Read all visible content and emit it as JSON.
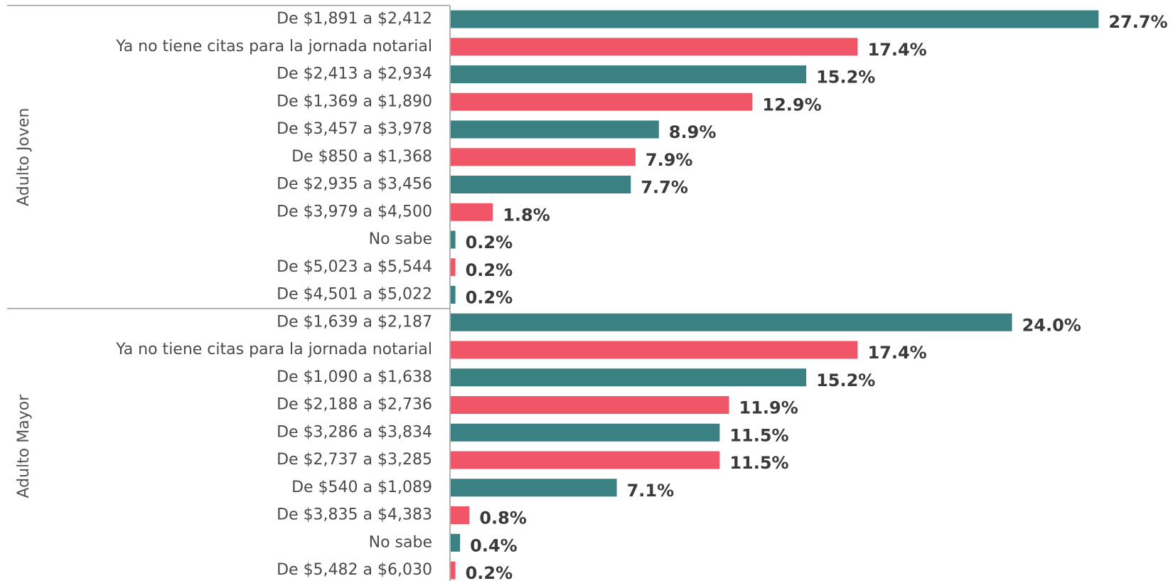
{
  "chart_data": {
    "type": "bar",
    "orientation": "horizontal",
    "groups": [
      {
        "name": "Adulto Joven",
        "categories": [
          "De $1,891 a $2,412",
          "Ya no tiene citas para la jornada notarial",
          "De $2,413 a $2,934",
          "De $1,369 a $1,890",
          "De $3,457 a $3,978",
          "De $850 a $1,368",
          "De $2,935 a $3,456",
          "De $3,979 a $4,500",
          "No sabe",
          "De $5,023 a $5,544",
          "De $4,501 a $5,022"
        ],
        "values": [
          27.7,
          17.4,
          15.2,
          12.9,
          8.9,
          7.9,
          7.7,
          1.8,
          0.2,
          0.2,
          0.2
        ],
        "value_labels": [
          "27.7%",
          "17.4%",
          "15.2%",
          "12.9%",
          "8.9%",
          "7.9%",
          "7.7%",
          "1.8%",
          "0.2%",
          "0.2%",
          "0.2%"
        ],
        "colors": [
          "#3b8082",
          "#f05667",
          "#3b8082",
          "#f05667",
          "#3b8082",
          "#f05667",
          "#3b8082",
          "#f05667",
          "#3b8082",
          "#f05667",
          "#3b8082"
        ]
      },
      {
        "name": "Adulto Mayor",
        "categories": [
          "De $1,639 a $2,187",
          "Ya no tiene citas para la jornada notarial",
          "De $1,090 a $1,638",
          "De $2,188 a $2,736",
          "De $3,286 a $3,834",
          "De $2,737 a $3,285",
          "De $540 a $1,089",
          "De $3,835 a $4,383",
          "No sabe",
          "De $5,482 a $6,030"
        ],
        "values": [
          24.0,
          17.4,
          15.2,
          11.9,
          11.5,
          11.5,
          7.1,
          0.8,
          0.4,
          0.2
        ],
        "value_labels": [
          "24.0%",
          "17.4%",
          "15.2%",
          "11.9%",
          "11.5%",
          "11.5%",
          "7.1%",
          "0.8%",
          "0.4%",
          "0.2%"
        ],
        "colors": [
          "#3b8082",
          "#f05667",
          "#3b8082",
          "#f05667",
          "#3b8082",
          "#f05667",
          "#3b8082",
          "#f05667",
          "#3b8082",
          "#f05667"
        ]
      }
    ]
  }
}
